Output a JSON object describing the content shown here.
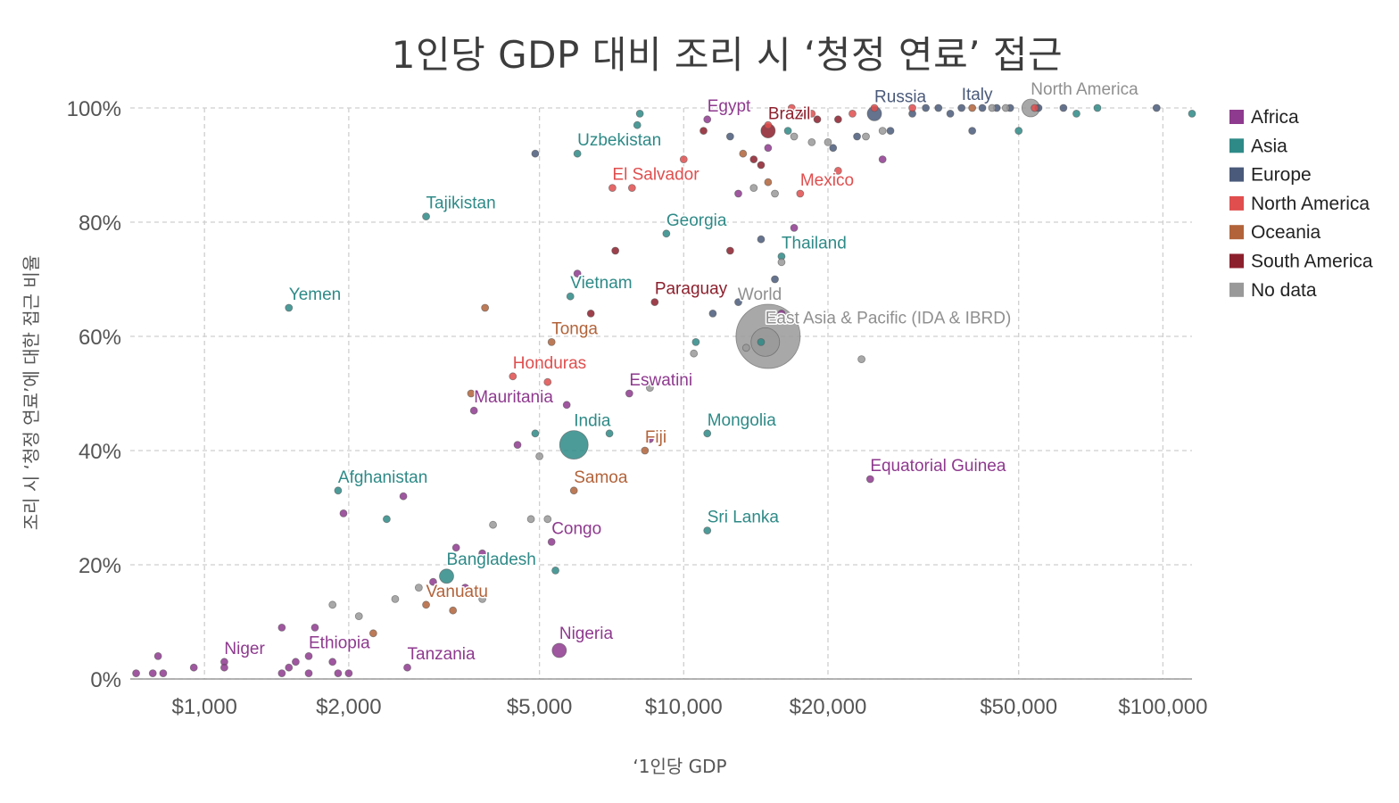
{
  "chart_data": {
    "type": "scatter",
    "title": "1인당 GDP 대비 조리 시 ‘청정 연료’ 접근",
    "xlabel": "‘1인당 GDP",
    "ylabel": "조리 시 ‘청정 연료’에 대한 접근 비율",
    "x_scale": "log",
    "xlim": [
      700,
      115000
    ],
    "ylim": [
      0,
      100
    ],
    "x_ticks": [
      1000,
      2000,
      5000,
      10000,
      20000,
      50000,
      100000
    ],
    "x_tick_labels": [
      "$1,000",
      "$2,000",
      "$5,000",
      "$10,000",
      "$20,000",
      "$50,000",
      "$100,000"
    ],
    "y_ticks": [
      0,
      20,
      40,
      60,
      80,
      100
    ],
    "y_tick_labels": [
      "0%",
      "20%",
      "40%",
      "60%",
      "80%",
      "100%"
    ],
    "grid": true,
    "legend_position": "right",
    "series": [
      {
        "name": "Africa",
        "color": "#8e3a8e",
        "points": [
          {
            "label": "Niger",
            "x": 1100,
            "y": 3
          },
          {
            "label": "Ethiopia",
            "x": 1650,
            "y": 4
          },
          {
            "label": "Tanzania",
            "x": 2650,
            "y": 2
          },
          {
            "label": "Nigeria",
            "x": 5500,
            "y": 5
          },
          {
            "label": "Congo",
            "x": 5300,
            "y": 24
          },
          {
            "label": "Mauritania",
            "x": 3650,
            "y": 47
          },
          {
            "label": "Eswatini",
            "x": 7700,
            "y": 50
          },
          {
            "label": "Equatorial Guinea",
            "x": 24500,
            "y": 35
          },
          {
            "label": "Egypt",
            "x": 11200,
            "y": 98
          },
          {
            "x": 720,
            "y": 1
          },
          {
            "x": 780,
            "y": 1
          },
          {
            "x": 800,
            "y": 4
          },
          {
            "x": 820,
            "y": 1
          },
          {
            "x": 950,
            "y": 2
          },
          {
            "x": 1100,
            "y": 2
          },
          {
            "x": 1450,
            "y": 1
          },
          {
            "x": 1450,
            "y": 9
          },
          {
            "x": 1500,
            "y": 2
          },
          {
            "x": 1550,
            "y": 3
          },
          {
            "x": 1650,
            "y": 1
          },
          {
            "x": 1700,
            "y": 9
          },
          {
            "x": 1850,
            "y": 3
          },
          {
            "x": 1900,
            "y": 1
          },
          {
            "x": 1950,
            "y": 29
          },
          {
            "x": 2000,
            "y": 1
          },
          {
            "x": 2600,
            "y": 32
          },
          {
            "x": 3000,
            "y": 17
          },
          {
            "x": 3350,
            "y": 23
          },
          {
            "x": 3500,
            "y": 16
          },
          {
            "x": 3800,
            "y": 22
          },
          {
            "x": 4500,
            "y": 41
          },
          {
            "x": 5700,
            "y": 48
          },
          {
            "x": 6000,
            "y": 71
          },
          {
            "x": 8500,
            "y": 42
          },
          {
            "x": 13000,
            "y": 85
          },
          {
            "x": 15000,
            "y": 93
          },
          {
            "x": 16000,
            "y": 64
          },
          {
            "x": 17000,
            "y": 79
          },
          {
            "x": 26000,
            "y": 91
          }
        ]
      },
      {
        "name": "Asia",
        "color": "#2e8a87",
        "points": [
          {
            "label": "Yemen",
            "x": 1500,
            "y": 65
          },
          {
            "label": "Afghanistan",
            "x": 1900,
            "y": 33
          },
          {
            "label": "Tajikistan",
            "x": 2900,
            "y": 81
          },
          {
            "label": "Bangladesh",
            "x": 3200,
            "y": 18
          },
          {
            "label": "India",
            "x": 5900,
            "y": 41
          },
          {
            "label": "Vietnam",
            "x": 5800,
            "y": 67
          },
          {
            "label": "Uzbekistan",
            "x": 6000,
            "y": 92
          },
          {
            "label": "Georgia",
            "x": 9200,
            "y": 78
          },
          {
            "label": "Mongolia",
            "x": 11200,
            "y": 43
          },
          {
            "label": "Sri Lanka",
            "x": 11200,
            "y": 26
          },
          {
            "label": "Thailand",
            "x": 16000,
            "y": 74
          },
          {
            "x": 2400,
            "y": 28
          },
          {
            "x": 4900,
            "y": 43
          },
          {
            "x": 5400,
            "y": 19
          },
          {
            "x": 7000,
            "y": 43
          },
          {
            "x": 8000,
            "y": 97
          },
          {
            "x": 8100,
            "y": 99
          },
          {
            "x": 10600,
            "y": 59
          },
          {
            "x": 14500,
            "y": 59
          },
          {
            "x": 16500,
            "y": 96
          },
          {
            "x": 50000,
            "y": 96
          },
          {
            "x": 66000,
            "y": 99
          },
          {
            "x": 73000,
            "y": 100
          },
          {
            "x": 115000,
            "y": 99
          }
        ]
      },
      {
        "name": "Europe",
        "color": "#4a5a7a",
        "points": [
          {
            "label": "Russia",
            "x": 25000,
            "y": 99
          },
          {
            "label": "Italy",
            "x": 38000,
            "y": 100
          },
          {
            "x": 4900,
            "y": 92
          },
          {
            "x": 11500,
            "y": 64
          },
          {
            "x": 12500,
            "y": 95
          },
          {
            "x": 13000,
            "y": 66
          },
          {
            "x": 14500,
            "y": 77
          },
          {
            "x": 15500,
            "y": 70
          },
          {
            "x": 20500,
            "y": 93
          },
          {
            "x": 23000,
            "y": 95
          },
          {
            "x": 27000,
            "y": 96
          },
          {
            "x": 30000,
            "y": 99
          },
          {
            "x": 32000,
            "y": 100
          },
          {
            "x": 34000,
            "y": 100
          },
          {
            "x": 36000,
            "y": 99
          },
          {
            "x": 40000,
            "y": 96
          },
          {
            "x": 42000,
            "y": 100
          },
          {
            "x": 45000,
            "y": 100
          },
          {
            "x": 48000,
            "y": 100
          },
          {
            "x": 55000,
            "y": 100
          },
          {
            "x": 62000,
            "y": 100
          },
          {
            "x": 97000,
            "y": 100
          }
        ]
      },
      {
        "name": "North America",
        "color": "#e04e4e",
        "points": [
          {
            "label": "Honduras",
            "x": 4400,
            "y": 53
          },
          {
            "label": "El Salvador",
            "x": 7100,
            "y": 86
          },
          {
            "label": "Mexico",
            "x": 17500,
            "y": 85
          },
          {
            "x": 5200,
            "y": 52
          },
          {
            "x": 7800,
            "y": 86
          },
          {
            "x": 10000,
            "y": 91
          },
          {
            "x": 15000,
            "y": 97
          },
          {
            "x": 16800,
            "y": 100
          },
          {
            "x": 18500,
            "y": 99
          },
          {
            "x": 21000,
            "y": 89
          },
          {
            "x": 22500,
            "y": 99
          },
          {
            "x": 25000,
            "y": 100
          },
          {
            "x": 30000,
            "y": 100
          },
          {
            "x": 54000,
            "y": 100
          }
        ]
      },
      {
        "name": "Oceania",
        "color": "#b2633a",
        "points": [
          {
            "label": "Tonga",
            "x": 5300,
            "y": 59
          },
          {
            "label": "Fiji",
            "x": 8300,
            "y": 40
          },
          {
            "label": "Samoa",
            "x": 5900,
            "y": 33
          },
          {
            "label": "Vanuatu",
            "x": 2900,
            "y": 13
          },
          {
            "x": 2250,
            "y": 8
          },
          {
            "x": 3300,
            "y": 12
          },
          {
            "x": 3600,
            "y": 50
          },
          {
            "x": 3850,
            "y": 65
          },
          {
            "x": 13300,
            "y": 92
          },
          {
            "x": 15000,
            "y": 87
          },
          {
            "x": 40000,
            "y": 100
          }
        ]
      },
      {
        "name": "South America",
        "color": "#8c1f2c",
        "points": [
          {
            "label": "Paraguay",
            "x": 8700,
            "y": 66
          },
          {
            "label": "Brazil",
            "x": 15000,
            "y": 96
          },
          {
            "x": 6400,
            "y": 64
          },
          {
            "x": 7200,
            "y": 75
          },
          {
            "x": 11000,
            "y": 96
          },
          {
            "x": 12500,
            "y": 75
          },
          {
            "x": 14000,
            "y": 91
          },
          {
            "x": 14500,
            "y": 90
          },
          {
            "x": 17500,
            "y": 99
          },
          {
            "x": 19000,
            "y": 98
          },
          {
            "x": 21000,
            "y": 98
          }
        ]
      },
      {
        "name": "No data",
        "color": "#999999",
        "points": [
          {
            "label": "World",
            "x": 15000,
            "y": 60
          },
          {
            "label": "East Asia & Pacific (IDA & IBRD)",
            "x": 14800,
            "y": 59
          },
          {
            "label": "North America",
            "x": 53000,
            "y": 100
          },
          {
            "x": 1850,
            "y": 13
          },
          {
            "x": 2100,
            "y": 11
          },
          {
            "x": 2500,
            "y": 14
          },
          {
            "x": 2800,
            "y": 16
          },
          {
            "x": 3800,
            "y": 14
          },
          {
            "x": 4000,
            "y": 27
          },
          {
            "x": 4800,
            "y": 28
          },
          {
            "x": 5200,
            "y": 28
          },
          {
            "x": 5000,
            "y": 39
          },
          {
            "x": 8500,
            "y": 51
          },
          {
            "x": 10500,
            "y": 57
          },
          {
            "x": 13500,
            "y": 58
          },
          {
            "x": 14000,
            "y": 86
          },
          {
            "x": 15500,
            "y": 85
          },
          {
            "x": 16000,
            "y": 73
          },
          {
            "x": 17000,
            "y": 95
          },
          {
            "x": 18500,
            "y": 94
          },
          {
            "x": 20000,
            "y": 94
          },
          {
            "x": 23500,
            "y": 56
          },
          {
            "x": 24000,
            "y": 95
          },
          {
            "x": 26000,
            "y": 96
          },
          {
            "x": 44000,
            "y": 100
          },
          {
            "x": 47000,
            "y": 100
          }
        ]
      }
    ],
    "bubble_scale": [
      {
        "label": "World",
        "size": 9
      },
      {
        "label": "East Asia & Pacific (IDA & IBRD)",
        "size": 4
      },
      {
        "label": "India",
        "size": 4
      },
      {
        "label": "North America",
        "size": 2.5
      },
      {
        "label": "Brazil",
        "size": 2
      },
      {
        "label": "Bangladesh",
        "size": 2
      },
      {
        "label": "Nigeria",
        "size": 2
      },
      {
        "label": "Russia",
        "size": 2
      }
    ]
  }
}
